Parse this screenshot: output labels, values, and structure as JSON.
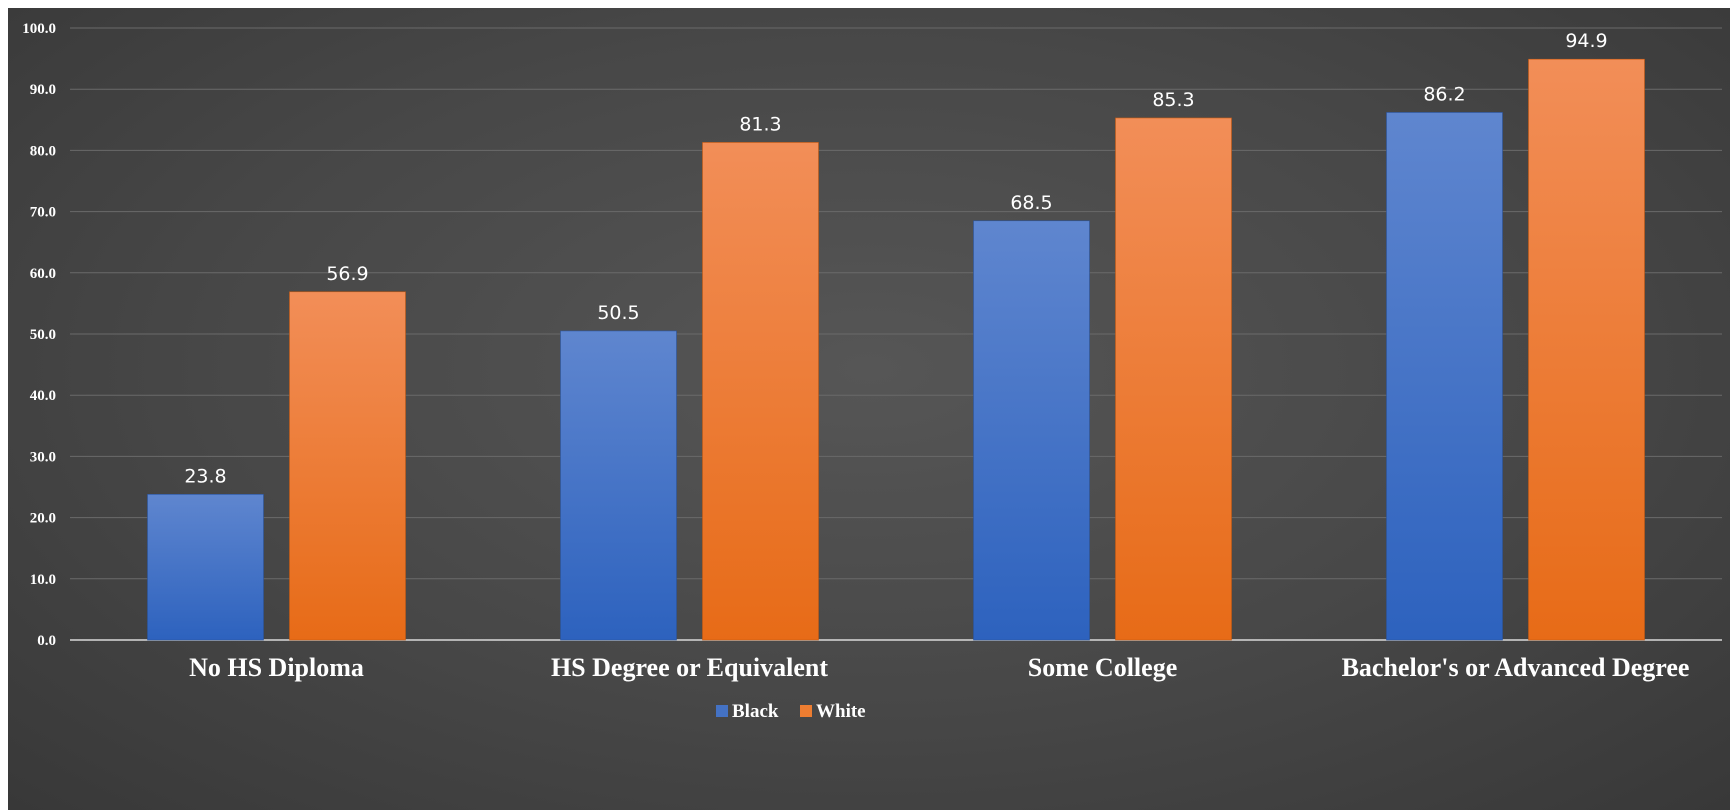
{
  "chart_data": {
    "type": "bar",
    "title": "",
    "xlabel": "",
    "ylabel": "",
    "categories": [
      "No HS Diploma",
      "HS Degree or Equivalent",
      "Some College",
      "Bachelor's or Advanced Degree"
    ],
    "series": [
      {
        "name": "Black",
        "values": [
          23.8,
          50.5,
          68.5,
          86.2
        ],
        "color": "#4472c4"
      },
      {
        "name": "White",
        "values": [
          56.9,
          81.3,
          85.3,
          94.9
        ],
        "color": "#ed7d31"
      }
    ],
    "ylim": [
      0,
      100
    ],
    "yticks": [
      "0.0",
      "10.0",
      "20.0",
      "30.0",
      "40.0",
      "50.0",
      "60.0",
      "70.0",
      "80.0",
      "90.0",
      "100.0"
    ],
    "data_labels": [
      [
        "23.8",
        "50.5",
        "68.5",
        "86.2"
      ],
      [
        "56.9",
        "81.3",
        "85.3",
        "94.9"
      ]
    ],
    "grid": true,
    "legend_position": "bottom",
    "background": "#474747",
    "text_color": "#ffffff"
  }
}
